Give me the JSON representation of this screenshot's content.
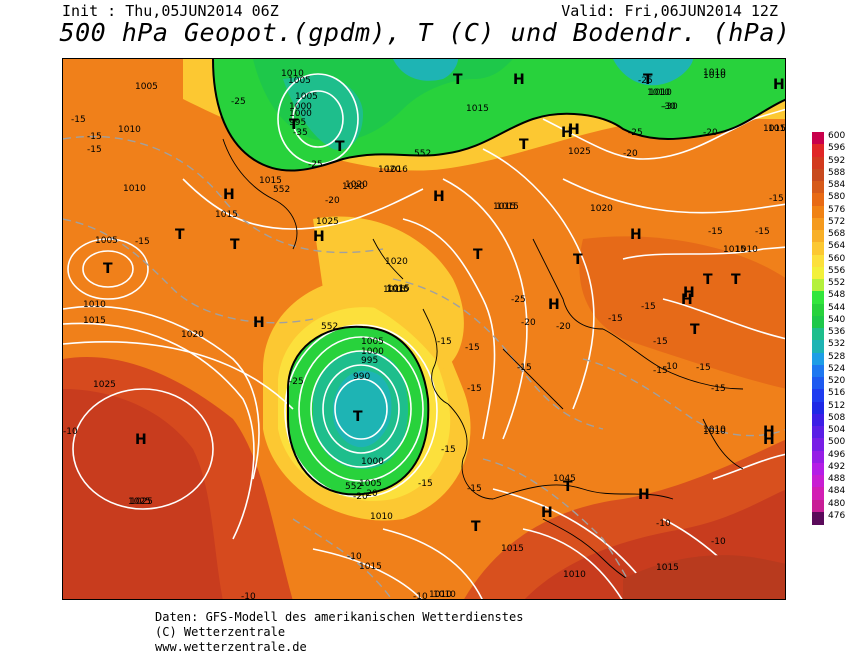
{
  "header": {
    "init": "Init : Thu,05JUN2014 06Z",
    "valid": "Valid: Fri,06JUN2014 12Z",
    "title": "500 hPa Geopot.(gpdm), T (C) und Bodendr. (hPa)"
  },
  "footer": {
    "line1": "Daten: GFS-Modell des amerikanischen Wetterdienstes",
    "line2": "(C) Wetterzentrale",
    "line3": "www.wetterzentrale.de"
  },
  "legend": {
    "levels": [
      "600",
      "596",
      "592",
      "588",
      "584",
      "580",
      "576",
      "572",
      "568",
      "564",
      "560",
      "556",
      "552",
      "548",
      "544",
      "540",
      "536",
      "532",
      "528",
      "524",
      "520",
      "516",
      "512",
      "508",
      "504",
      "500",
      "496",
      "492",
      "488",
      "484",
      "480",
      "476"
    ],
    "colors": [
      "#c8004b",
      "#e02626",
      "#d23a1e",
      "#c84a1e",
      "#d65a1a",
      "#e86a14",
      "#f08214",
      "#f59a1e",
      "#f8b028",
      "#fcc832",
      "#fce03c",
      "#f2f03a",
      "#b4f03c",
      "#32e63c",
      "#28d23c",
      "#1ec84a",
      "#1ebe8c",
      "#1eb4b4",
      "#1e9ee6",
      "#1e78f0",
      "#1e5af0",
      "#1e3cf0",
      "#1e28e6",
      "#3c1ee6",
      "#5a1ee6",
      "#781ee6",
      "#961ee6",
      "#b41ee6",
      "#c81ed2",
      "#d21eb4",
      "#c81e96",
      "#5a0a5a"
    ]
  },
  "map": {
    "highs": [
      {
        "label": "H"
      },
      {
        "label": "H"
      },
      {
        "label": "H"
      },
      {
        "label": "H"
      },
      {
        "label": "H"
      },
      {
        "label": "H"
      },
      {
        "label": "H"
      },
      {
        "label": "H"
      },
      {
        "label": "H"
      },
      {
        "label": "H"
      },
      {
        "label": "H"
      },
      {
        "label": "H"
      },
      {
        "label": "H"
      },
      {
        "label": "H"
      },
      {
        "label": "H"
      },
      {
        "label": "H"
      },
      {
        "label": "H"
      },
      {
        "label": "H"
      }
    ],
    "lows": [
      {
        "label": "T"
      },
      {
        "label": "T"
      },
      {
        "label": "T"
      },
      {
        "label": "T"
      },
      {
        "label": "T"
      },
      {
        "label": "T"
      },
      {
        "label": "T"
      },
      {
        "label": "T"
      },
      {
        "label": "T"
      },
      {
        "label": "T"
      },
      {
        "label": "T"
      },
      {
        "label": "T"
      },
      {
        "label": "T"
      },
      {
        "label": "T"
      },
      {
        "label": "T"
      },
      {
        "label": "T"
      }
    ],
    "isobar_labels": [
      "1005",
      "1010",
      "1010",
      "1005",
      "1000",
      "995",
      "1015",
      "1025",
      "1020",
      "1015",
      "1010",
      "1015",
      "1025",
      "1010",
      "1015",
      "1005",
      "1010",
      "1020",
      "1016",
      "1025",
      "1020",
      "1015",
      "1015",
      "1020",
      "1025",
      "1020",
      "1015",
      "1010",
      "1005",
      "1000",
      "995",
      "990",
      "1000",
      "1005",
      "1010",
      "1025",
      "1015",
      "1015",
      "1010",
      "1010",
      "1015",
      "1010",
      "1015",
      "1015",
      "1010",
      "1010",
      "1010",
      "1005",
      "1010",
      "1010",
      "1015",
      "1045",
      "1010",
      "1000",
      "1020",
      "1015"
    ],
    "temp_labels": [
      "-15",
      "-15",
      "-15",
      "-25",
      "-35",
      "-25",
      "-30",
      "-20",
      "-15",
      "-20",
      "-25",
      "-30",
      "-25",
      "-20",
      "-15",
      "-20",
      "-25",
      "-20",
      "-15",
      "-15",
      "-15",
      "-15",
      "-15",
      "-15",
      "-25",
      "-15",
      "-15",
      "-15",
      "-15",
      "-15",
      "-10",
      "-20",
      "-15",
      "-10",
      "-10",
      "-10",
      "-15",
      "-10",
      "-15",
      "-10",
      "-15",
      "-10",
      "-20"
    ],
    "height_labels": [
      "552",
      "552",
      "552",
      "552"
    ]
  }
}
